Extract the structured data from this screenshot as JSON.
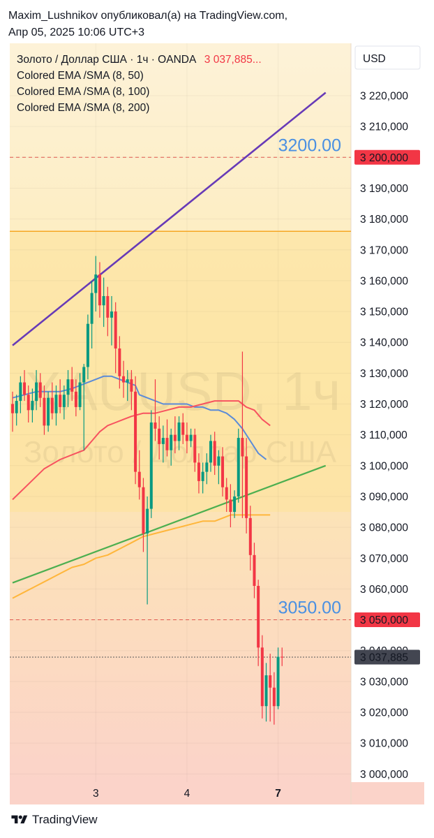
{
  "header": {
    "line1": "Maxim_Lushnikov опубликовал(а) на TradingView.com,",
    "line2": "Апр 05, 2025 10:06 UTC+3"
  },
  "legend": {
    "symbol": "Золото / Доллар США · 1ч · OANDA",
    "price": "3 037,885...",
    "ind1": "Colored EMA /SMA (8, 50)",
    "ind2": "Colored EMA /SMA (8, 100)",
    "ind3": "Colored EMA /SMA (8, 200)"
  },
  "watermark": {
    "big": "XAUUSD, 1ч",
    "small": "Золото / Доллар США"
  },
  "currency": "USD",
  "footer": {
    "brand": "TradingView"
  },
  "colors": {
    "bg_top": "#fdf2d8",
    "bg_mid": "#fde9b0",
    "bg_bottom": "#fbd3c9",
    "bull": "#089981",
    "bear": "#f23645",
    "ema50": "#f7525f",
    "ema100": "#5b8bd8",
    "ema200": "#ffb63b",
    "channel": "#673ab7",
    "trend": "#4caf50",
    "level_line": "#f5a623",
    "dash": "#e0584f",
    "tag_red": "#f23645",
    "tag_dark": "#434651",
    "annot": "#4a90e2"
  },
  "chart_data": {
    "type": "candlestick",
    "symbol": "XAUUSD",
    "timeframe": "1ч",
    "ylim": [
      3000,
      3228
    ],
    "y_ticks": [
      {
        "v": 3220,
        "label": "3 220,000"
      },
      {
        "v": 3210,
        "label": "3 210,000"
      },
      {
        "v": 3190,
        "label": "3 190,000"
      },
      {
        "v": 3180,
        "label": "3 180,000"
      },
      {
        "v": 3170,
        "label": "3 170,000"
      },
      {
        "v": 3160,
        "label": "3 160,000"
      },
      {
        "v": 3150,
        "label": "3 150,000"
      },
      {
        "v": 3140,
        "label": "3 140,000"
      },
      {
        "v": 3130,
        "label": "3 130,000"
      },
      {
        "v": 3120,
        "label": "3 120,000"
      },
      {
        "v": 3110,
        "label": "3 110,000"
      },
      {
        "v": 3100,
        "label": "3 100,000"
      },
      {
        "v": 3090,
        "label": "3 090,000"
      },
      {
        "v": 3080,
        "label": "3 080,000"
      },
      {
        "v": 3070,
        "label": "3 070,000"
      },
      {
        "v": 3060,
        "label": "3 060,000"
      },
      {
        "v": 3040,
        "label": "3 040,000"
      },
      {
        "v": 3030,
        "label": "3 030,000"
      },
      {
        "v": 3020,
        "label": "3 020,000"
      },
      {
        "v": 3010,
        "label": "3 010,000"
      },
      {
        "v": 3000,
        "label": "3 000,000"
      }
    ],
    "x_ticks": [
      {
        "index": 21,
        "label": "3",
        "bold": false
      },
      {
        "index": 44,
        "label": "4",
        "bold": false
      },
      {
        "index": 67,
        "label": "7",
        "bold": true
      }
    ],
    "price_tags": [
      {
        "value": 3200,
        "label": "3 200,000",
        "color": "#f23645"
      },
      {
        "value": 3050,
        "label": "3 050,000",
        "color": "#f23645"
      },
      {
        "value": 3037.885,
        "label": "3 037,885",
        "color": "#434651"
      }
    ],
    "annotations": [
      {
        "text": "3200.00",
        "value": 3200
      },
      {
        "text": "3050.00",
        "value": 3050
      }
    ],
    "horizontal_dashed": [
      3200,
      3050,
      3037.885
    ],
    "level_line": 3176,
    "channel_line": {
      "from": [
        0,
        3139
      ],
      "to": [
        79,
        3221
      ]
    },
    "trend_line": {
      "from": [
        0,
        3062
      ],
      "to": [
        79,
        3100
      ]
    },
    "ohlc": [
      [
        3120,
        3124,
        3111,
        3117
      ],
      [
        3117,
        3123,
        3113,
        3121
      ],
      [
        3121,
        3129,
        3117,
        3127
      ],
      [
        3127,
        3131,
        3121,
        3123
      ],
      [
        3123,
        3126,
        3114,
        3118
      ],
      [
        3118,
        3125,
        3114,
        3121
      ],
      [
        3121,
        3131,
        3118,
        3127
      ],
      [
        3127,
        3130,
        3119,
        3122
      ],
      [
        3122,
        3126,
        3110,
        3113
      ],
      [
        3113,
        3124,
        3111,
        3122
      ],
      [
        3122,
        3127,
        3115,
        3117
      ],
      [
        3117,
        3126,
        3113,
        3123
      ],
      [
        3123,
        3128,
        3117,
        3119
      ],
      [
        3119,
        3126,
        3115,
        3123
      ],
      [
        3123,
        3131,
        3119,
        3128
      ],
      [
        3128,
        3132,
        3121,
        3124
      ],
      [
        3124,
        3128,
        3116,
        3119
      ],
      [
        3119,
        3130,
        3118,
        3127
      ],
      [
        3127,
        3133,
        3105,
        3132
      ],
      [
        3132,
        3149,
        3128,
        3146
      ],
      [
        3146,
        3160,
        3138,
        3156
      ],
      [
        3156,
        3168,
        3150,
        3162
      ],
      [
        3162,
        3166,
        3148,
        3152
      ],
      [
        3152,
        3161,
        3145,
        3155
      ],
      [
        3155,
        3158,
        3142,
        3148
      ],
      [
        3148,
        3155,
        3139,
        3150
      ],
      [
        3150,
        3153,
        3130,
        3138
      ],
      [
        3138,
        3142,
        3125,
        3129
      ],
      [
        3129,
        3134,
        3122,
        3127
      ],
      [
        3127,
        3131,
        3121,
        3128
      ],
      [
        3128,
        3131,
        3118,
        3124
      ],
      [
        3124,
        3129,
        3094,
        3098
      ],
      [
        3098,
        3105,
        3089,
        3093
      ],
      [
        3093,
        3096,
        3072,
        3078
      ],
      [
        3078,
        3090,
        3055,
        3086
      ],
      [
        3086,
        3118,
        3083,
        3114
      ],
      [
        3114,
        3128,
        3108,
        3112
      ],
      [
        3112,
        3116,
        3102,
        3107
      ],
      [
        3107,
        3113,
        3101,
        3109
      ],
      [
        3109,
        3115,
        3103,
        3105
      ],
      [
        3105,
        3112,
        3100,
        3110
      ],
      [
        3110,
        3116,
        3104,
        3108
      ],
      [
        3108,
        3116,
        3105,
        3114
      ],
      [
        3114,
        3117,
        3107,
        3110
      ],
      [
        3110,
        3114,
        3104,
        3108
      ],
      [
        3108,
        3112,
        3106,
        3110
      ],
      [
        3110,
        3112,
        3098,
        3101
      ],
      [
        3101,
        3104,
        3091,
        3095
      ],
      [
        3095,
        3101,
        3091,
        3098
      ],
      [
        3098,
        3104,
        3094,
        3101
      ],
      [
        3101,
        3110,
        3098,
        3108
      ],
      [
        3108,
        3111,
        3097,
        3100
      ],
      [
        3100,
        3105,
        3094,
        3103
      ],
      [
        3103,
        3106,
        3090,
        3093
      ],
      [
        3093,
        3096,
        3085,
        3089
      ],
      [
        3089,
        3094,
        3080,
        3085
      ],
      [
        3085,
        3092,
        3083,
        3090
      ],
      [
        3090,
        3112,
        3088,
        3109
      ],
      [
        3109,
        3137,
        3083,
        3103
      ],
      [
        3103,
        3109,
        3078,
        3083
      ],
      [
        3083,
        3087,
        3066,
        3071
      ],
      [
        3071,
        3075,
        3057,
        3061
      ],
      [
        3061,
        3063,
        3035,
        3041
      ],
      [
        3041,
        3045,
        3018,
        3022
      ],
      [
        3022,
        3036,
        3017,
        3032
      ],
      [
        3032,
        3039,
        3017,
        3028
      ],
      [
        3028,
        3033,
        3016,
        3022
      ],
      [
        3022,
        3041,
        3021,
        3038
      ],
      [
        3038,
        3041,
        3035,
        3037.885
      ]
    ],
    "ema50": [
      [
        0,
        3089
      ],
      [
        4,
        3094
      ],
      [
        8,
        3099
      ],
      [
        12,
        3102
      ],
      [
        16,
        3104
      ],
      [
        18,
        3105
      ],
      [
        20,
        3108
      ],
      [
        22,
        3111
      ],
      [
        24,
        3113
      ],
      [
        26,
        3114
      ],
      [
        28,
        3115
      ],
      [
        30,
        3116
      ],
      [
        33,
        3117
      ],
      [
        36,
        3117
      ],
      [
        39,
        3118
      ],
      [
        42,
        3119
      ],
      [
        45,
        3119
      ],
      [
        48,
        3120
      ],
      [
        51,
        3121
      ],
      [
        54,
        3121
      ],
      [
        57,
        3121
      ],
      [
        59,
        3119
      ],
      [
        61,
        3118
      ],
      [
        63,
        3115
      ],
      [
        65,
        3113
      ]
    ],
    "ema100": [
      [
        0,
        3122
      ],
      [
        3,
        3123
      ],
      [
        6,
        3124
      ],
      [
        9,
        3124
      ],
      [
        12,
        3124
      ],
      [
        15,
        3125
      ],
      [
        17,
        3126
      ],
      [
        19,
        3127
      ],
      [
        21,
        3128
      ],
      [
        23,
        3129
      ],
      [
        25,
        3129
      ],
      [
        27,
        3128
      ],
      [
        29,
        3127
      ],
      [
        31,
        3126
      ],
      [
        32,
        3123
      ],
      [
        34,
        3122
      ],
      [
        36,
        3121
      ],
      [
        38,
        3120
      ],
      [
        40,
        3120
      ],
      [
        42,
        3120
      ],
      [
        44,
        3120
      ],
      [
        46,
        3119
      ],
      [
        48,
        3119
      ],
      [
        50,
        3118
      ],
      [
        52,
        3118
      ],
      [
        54,
        3117
      ],
      [
        56,
        3115
      ],
      [
        58,
        3112
      ],
      [
        60,
        3108
      ],
      [
        62,
        3104
      ],
      [
        64,
        3102
      ]
    ],
    "ema200": [
      [
        0,
        3057
      ],
      [
        3,
        3059
      ],
      [
        6,
        3061
      ],
      [
        9,
        3063
      ],
      [
        12,
        3065
      ],
      [
        15,
        3067
      ],
      [
        18,
        3068
      ],
      [
        21,
        3070
      ],
      [
        24,
        3071
      ],
      [
        27,
        3073
      ],
      [
        30,
        3075
      ],
      [
        33,
        3077
      ],
      [
        36,
        3078
      ],
      [
        39,
        3079
      ],
      [
        42,
        3080
      ],
      [
        45,
        3081
      ],
      [
        48,
        3082
      ],
      [
        51,
        3082
      ],
      [
        53,
        3083
      ],
      [
        55,
        3084
      ],
      [
        57,
        3084
      ],
      [
        59,
        3084
      ],
      [
        61,
        3084
      ],
      [
        63,
        3084
      ],
      [
        65,
        3084
      ]
    ]
  }
}
